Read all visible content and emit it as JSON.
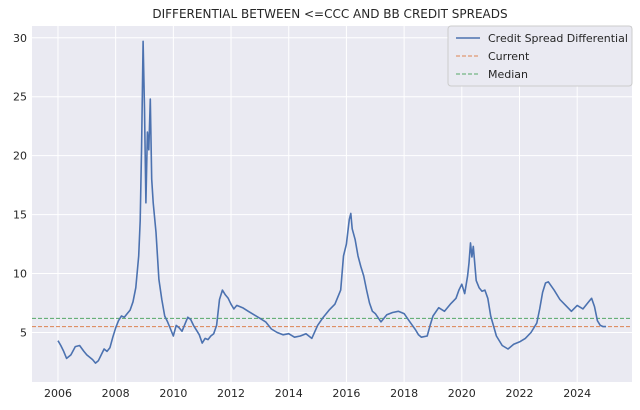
{
  "chart_data": {
    "type": "line",
    "title": "DIFFERENTIAL BETWEEN <=CCC AND BB CREDIT SPREADS",
    "xlabel": "",
    "ylabel": "",
    "xlim": [
      2005.1,
      2025.9
    ],
    "ylim": [
      0.8,
      31.0
    ],
    "xticks": [
      2006,
      2008,
      2010,
      2012,
      2014,
      2016,
      2018,
      2020,
      2022,
      2024
    ],
    "yticks": [
      5,
      10,
      15,
      20,
      25,
      30
    ],
    "grid": true,
    "legend_position": "top-right",
    "series": [
      {
        "name": "Credit Spread Differential",
        "color": "#4c72b0",
        "style": "solid",
        "x": [
          2006.0,
          2006.1,
          2006.2,
          2006.3,
          2006.45,
          2006.6,
          2006.75,
          2006.9,
          2007.0,
          2007.1,
          2007.2,
          2007.3,
          2007.4,
          2007.5,
          2007.6,
          2007.7,
          2007.8,
          2007.9,
          2008.0,
          2008.1,
          2008.2,
          2008.3,
          2008.4,
          2008.5,
          2008.6,
          2008.7,
          2008.8,
          2008.85,
          2008.9,
          2008.95,
          2009.0,
          2009.05,
          2009.1,
          2009.15,
          2009.2,
          2009.25,
          2009.3,
          2009.4,
          2009.5,
          2009.6,
          2009.7,
          2009.8,
          2009.9,
          2010.0,
          2010.1,
          2010.2,
          2010.3,
          2010.4,
          2010.5,
          2010.6,
          2010.7,
          2010.8,
          2010.9,
          2011.0,
          2011.1,
          2011.2,
          2011.3,
          2011.4,
          2011.5,
          2011.6,
          2011.7,
          2011.8,
          2011.9,
          2012.0,
          2012.1,
          2012.2,
          2012.4,
          2012.6,
          2012.8,
          2013.0,
          2013.2,
          2013.4,
          2013.6,
          2013.8,
          2014.0,
          2014.2,
          2014.4,
          2014.6,
          2014.8,
          2015.0,
          2015.2,
          2015.4,
          2015.6,
          2015.8,
          2015.9,
          2016.0,
          2016.1,
          2016.15,
          2016.2,
          2016.3,
          2016.4,
          2016.5,
          2016.6,
          2016.7,
          2016.8,
          2016.9,
          2017.0,
          2017.2,
          2017.4,
          2017.6,
          2017.8,
          2018.0,
          2018.2,
          2018.4,
          2018.5,
          2018.6,
          2018.8,
          2018.9,
          2019.0,
          2019.2,
          2019.4,
          2019.6,
          2019.8,
          2019.9,
          2020.0,
          2020.1,
          2020.2,
          2020.25,
          2020.3,
          2020.35,
          2020.4,
          2020.5,
          2020.6,
          2020.7,
          2020.8,
          2020.9,
          2021.0,
          2021.2,
          2021.4,
          2021.6,
          2021.8,
          2022.0,
          2022.2,
          2022.4,
          2022.6,
          2022.7,
          2022.8,
          2022.9,
          2023.0,
          2023.2,
          2023.4,
          2023.6,
          2023.8,
          2024.0,
          2024.2,
          2024.4,
          2024.5,
          2024.6,
          2024.7,
          2024.8,
          2024.9,
          2025.0
        ],
        "y": [
          4.3,
          3.9,
          3.4,
          2.8,
          3.1,
          3.8,
          3.9,
          3.4,
          3.1,
          2.9,
          2.7,
          2.4,
          2.6,
          3.1,
          3.6,
          3.4,
          3.7,
          4.6,
          5.4,
          6.0,
          6.4,
          6.3,
          6.6,
          6.9,
          7.6,
          8.8,
          11.5,
          14.5,
          20.8,
          29.7,
          24.0,
          16.0,
          22.0,
          20.5,
          24.8,
          18.0,
          16.0,
          13.5,
          9.5,
          7.8,
          6.4,
          5.9,
          5.3,
          4.7,
          5.6,
          5.4,
          5.1,
          5.7,
          6.3,
          6.1,
          5.6,
          5.2,
          4.8,
          4.1,
          4.5,
          4.4,
          4.7,
          4.9,
          5.6,
          7.8,
          8.6,
          8.2,
          7.9,
          7.4,
          7.0,
          7.3,
          7.1,
          6.8,
          6.5,
          6.2,
          5.9,
          5.3,
          5.0,
          4.8,
          4.9,
          4.6,
          4.7,
          4.9,
          4.5,
          5.6,
          6.3,
          6.9,
          7.4,
          8.6,
          11.5,
          12.5,
          14.6,
          15.1,
          13.8,
          12.9,
          11.5,
          10.6,
          9.8,
          8.6,
          7.5,
          6.8,
          6.6,
          5.9,
          6.5,
          6.7,
          6.8,
          6.6,
          5.9,
          5.2,
          4.8,
          4.6,
          4.7,
          5.6,
          6.4,
          7.1,
          6.8,
          7.4,
          7.9,
          8.6,
          9.1,
          8.3,
          9.8,
          10.9,
          12.6,
          11.4,
          12.3,
          9.4,
          8.8,
          8.5,
          8.6,
          7.9,
          6.4,
          4.7,
          3.9,
          3.6,
          4.0,
          4.2,
          4.5,
          5.0,
          5.8,
          7.0,
          8.4,
          9.2,
          9.3,
          8.6,
          7.8,
          7.3,
          6.8,
          7.3,
          7.0,
          7.6,
          7.9,
          7.2,
          6.0,
          5.6,
          5.5,
          5.5
        ]
      },
      {
        "name": "Current",
        "color": "#dd8452",
        "style": "dashed",
        "value": 5.5
      },
      {
        "name": "Median",
        "color": "#55a868",
        "style": "dashed",
        "value": 6.2
      }
    ]
  }
}
